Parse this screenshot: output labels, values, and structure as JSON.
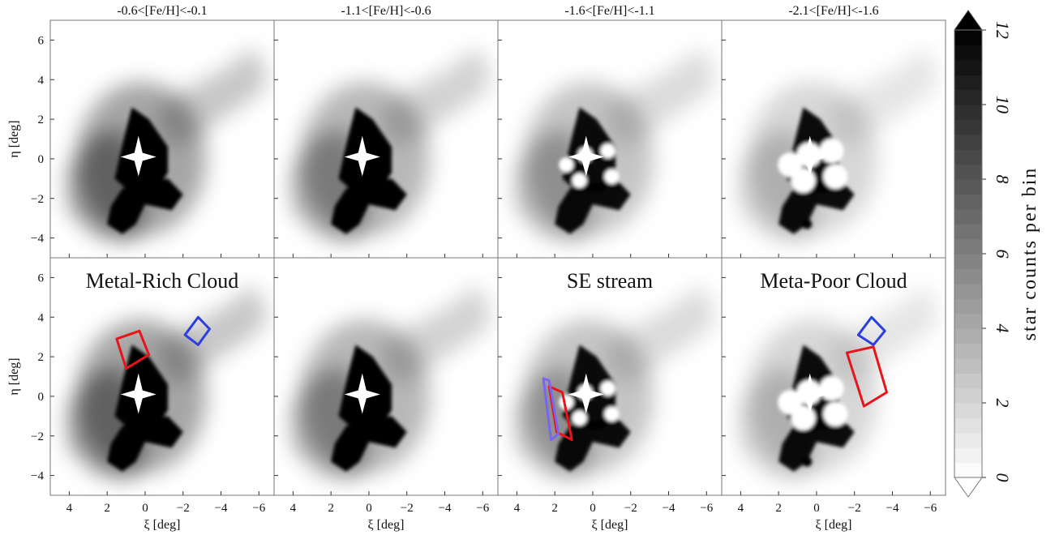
{
  "figure": {
    "column_titles": [
      "-0.6<[Fe/H]<-0.1",
      "-1.1<[Fe/H]<-0.6",
      "-1.6<[Fe/H]<-1.1",
      "-2.1<[Fe/H]<-1.6"
    ],
    "panel_titles": [
      "",
      "",
      "",
      "",
      "Metal-Rich Cloud",
      "",
      "SE stream",
      "Meta-Poor Cloud"
    ],
    "colorbar_label": "star counts per bin",
    "colorbar_ticks": [
      "0",
      "2",
      "4",
      "6",
      "8",
      "10",
      "12"
    ]
  },
  "chart_data": {
    "type": "heatmap",
    "xlabel": "ξ [deg]",
    "ylabel": "η [deg]",
    "xlim": [
      5,
      -6.8
    ],
    "ylim": [
      -5,
      7
    ],
    "xticks": [
      4,
      2,
      0,
      -2,
      -4,
      -6
    ],
    "yticks": [
      -4,
      -2,
      0,
      2,
      4,
      6
    ],
    "xtick_labels": [
      "4",
      "2",
      "0",
      "−2",
      "−4",
      "−6"
    ],
    "ytick_labels": [
      "−4",
      "−2",
      "0",
      "2",
      "4",
      "6"
    ],
    "colorbar": {
      "min": 0,
      "max": 12,
      "ticks": [
        0,
        2,
        4,
        6,
        8,
        10,
        12
      ],
      "label": "star counts per bin",
      "colormap": "Greys",
      "extend": "both"
    },
    "grid": false,
    "columns": [
      {
        "label": "-0.6<[Fe/H]<-0.1",
        "density_scale": 1.0
      },
      {
        "label": "-1.1<[Fe/H]<-0.6",
        "density_scale": 0.8
      },
      {
        "label": "-1.6<[Fe/H]<-1.1",
        "density_scale": 0.65
      },
      {
        "label": "-2.1<[Fe/H]<-1.6",
        "density_scale": 0.45
      }
    ],
    "regions": [
      {
        "panel": 4,
        "color": "#e8141a",
        "vertices": [
          [
            0.3,
            3.3
          ],
          [
            1.5,
            2.9
          ],
          [
            1.0,
            1.4
          ],
          [
            -0.2,
            2.1
          ]
        ]
      },
      {
        "panel": 4,
        "color": "#2b3fe0",
        "vertices": [
          [
            -2.8,
            4.0
          ],
          [
            -3.4,
            3.4
          ],
          [
            -2.8,
            2.6
          ],
          [
            -2.1,
            3.1
          ]
        ]
      },
      {
        "panel": 6,
        "color": "#e8141a",
        "vertices": [
          [
            1.6,
            0.2
          ],
          [
            1.1,
            -2.2
          ],
          [
            1.9,
            -1.8
          ],
          [
            2.3,
            0.5
          ]
        ]
      },
      {
        "panel": 6,
        "color": "#7866f0",
        "vertices": [
          [
            2.6,
            0.9
          ],
          [
            2.2,
            -2.2
          ],
          [
            1.8,
            -1.9
          ],
          [
            2.3,
            0.8
          ]
        ]
      },
      {
        "panel": 7,
        "color": "#e8141a",
        "vertices": [
          [
            -1.6,
            2.2
          ],
          [
            -3.0,
            2.5
          ],
          [
            -3.7,
            0.2
          ],
          [
            -2.5,
            -0.5
          ]
        ]
      },
      {
        "panel": 7,
        "color": "#2b3fe0",
        "vertices": [
          [
            -2.9,
            4.0
          ],
          [
            -3.6,
            3.3
          ],
          [
            -3.0,
            2.6
          ],
          [
            -2.2,
            3.1
          ]
        ]
      }
    ]
  }
}
